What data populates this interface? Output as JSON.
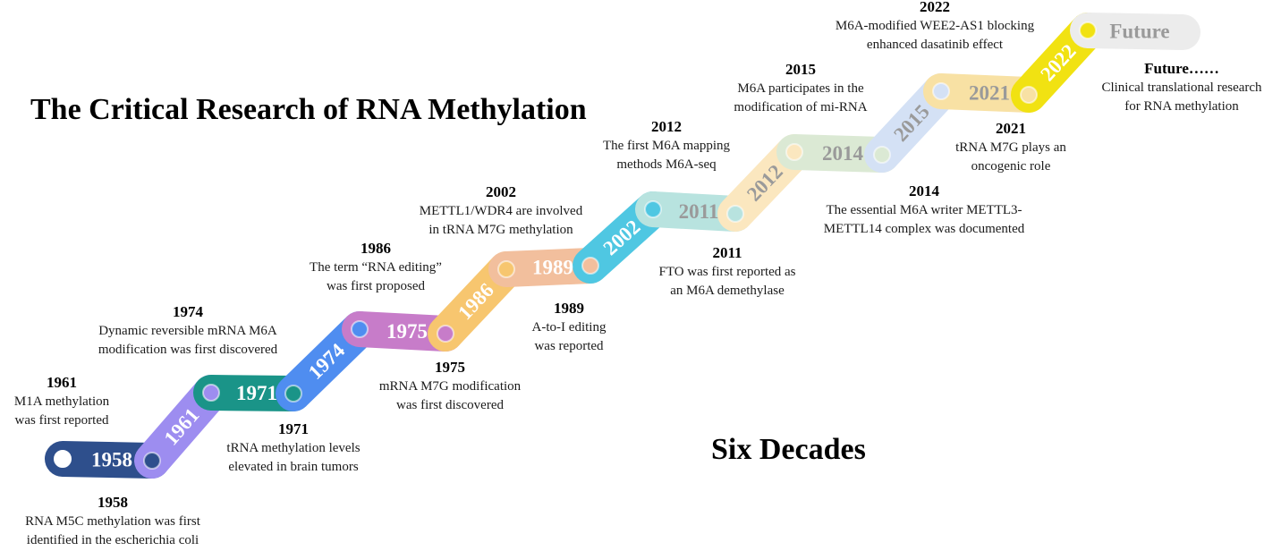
{
  "title": "The Critical Research of RNA Methylation",
  "subtitle": "Six Decades",
  "timeline": [
    {
      "label": "1958",
      "color": "#2e4f8c"
    },
    {
      "label": "1961",
      "color": "#9d8df0"
    },
    {
      "label": "1971",
      "color": "#1a9488"
    },
    {
      "label": "1974",
      "color": "#4f8df0"
    },
    {
      "label": "1975",
      "color": "#c77cc9"
    },
    {
      "label": "1986",
      "color": "#f7c66f"
    },
    {
      "label": "1989",
      "color": "#f2bf9d"
    },
    {
      "label": "2002",
      "color": "#4fc7e2"
    },
    {
      "label": "2011",
      "color": "#b8e3df"
    },
    {
      "label": "2012",
      "color": "#fbe7bf"
    },
    {
      "label": "2014",
      "color": "#dbe9d4"
    },
    {
      "label": "2015",
      "color": "#d4e1f5"
    },
    {
      "label": "2021",
      "color": "#f8e1a4"
    },
    {
      "label": "2022",
      "color": "#f1e212"
    },
    {
      "label": "Future",
      "color": "#ececec"
    }
  ],
  "events": [
    {
      "year": "1958",
      "lines": [
        "RNA M5C methylation was first",
        "identified in the escherichia coli"
      ]
    },
    {
      "year": "1961",
      "lines": [
        "M1A methylation",
        "was first reported"
      ]
    },
    {
      "year": "1971",
      "lines": [
        "tRNA methylation levels",
        "elevated in brain tumors"
      ]
    },
    {
      "year": "1974",
      "lines": [
        "Dynamic reversible mRNA M6A",
        "modification was first discovered"
      ]
    },
    {
      "year": "1975",
      "lines": [
        "mRNA M7G modification",
        "was first discovered"
      ]
    },
    {
      "year": "1986",
      "lines": [
        "The term “RNA editing”",
        "was first proposed"
      ]
    },
    {
      "year": "1989",
      "lines": [
        "A-to-I editing",
        "was reported"
      ]
    },
    {
      "year": "2002",
      "lines": [
        "METTL1/WDR4 are involved",
        "in tRNA M7G methylation"
      ]
    },
    {
      "year": "2011",
      "lines": [
        "FTO was first reported as",
        "an M6A demethylase"
      ]
    },
    {
      "year": "2012",
      "lines": [
        "The first M6A mapping",
        "methods M6A-seq"
      ]
    },
    {
      "year": "2014",
      "lines": [
        "The essential M6A writer METTL3-",
        "METTL14 complex was documented"
      ]
    },
    {
      "year": "2015",
      "lines": [
        "M6A participates in the",
        "modification of mi-RNA"
      ]
    },
    {
      "year": "2021",
      "lines": [
        "tRNA M7G plays an",
        "oncogenic role"
      ]
    },
    {
      "year": "2022",
      "lines": [
        "M6A-modified WEE2-AS1 blocking",
        "enhanced dasatinib effect"
      ]
    },
    {
      "year": "Future……",
      "lines": [
        "Clinical translational research",
        "for RNA methylation"
      ]
    }
  ]
}
